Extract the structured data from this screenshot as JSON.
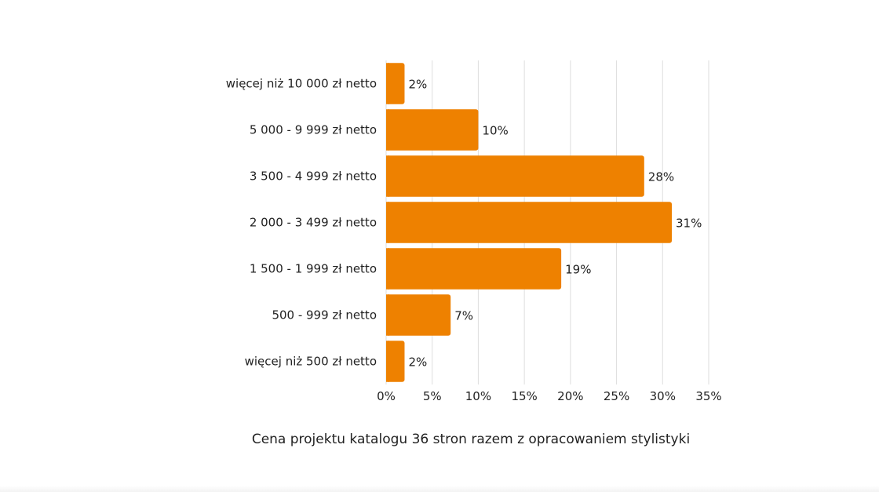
{
  "chart_data": {
    "type": "bar",
    "orientation": "horizontal",
    "title": "Cena projektu katalogu 36 stron razem z opracowaniem stylistyki",
    "categories": [
      "więcej niż 10 000 zł netto",
      "5 000 - 9 999 zł netto",
      "3 500 - 4 999 zł netto",
      "2 000 - 3 499 zł netto",
      "1 500 - 1 999 zł netto",
      "500 - 999 zł netto",
      "więcej niż 500 zł netto"
    ],
    "values": [
      2,
      10,
      28,
      31,
      19,
      7,
      2
    ],
    "value_labels": [
      "2%",
      "10%",
      "28%",
      "31%",
      "19%",
      "7%",
      "2%"
    ],
    "xlim": [
      0,
      35
    ],
    "x_ticks": [
      "0%",
      "5%",
      "10%",
      "15%",
      "20%",
      "25%",
      "30%",
      "35%"
    ],
    "grid": true,
    "bar_color": "#ee8100",
    "xlabel": "",
    "ylabel": ""
  }
}
